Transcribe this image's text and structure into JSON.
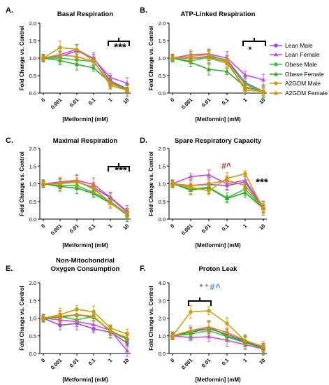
{
  "series_meta": [
    {
      "name": "Lean Male",
      "color": "#9b4fd9",
      "marker": "circle"
    },
    {
      "name": "Lean Female",
      "color": "#c24ee3",
      "marker": "triangle"
    },
    {
      "name": "Obese Male",
      "color": "#3cc23c",
      "marker": "circle"
    },
    {
      "name": "Obese Female",
      "color": "#2faa2f",
      "marker": "triangle"
    },
    {
      "name": "A2GDM Male",
      "color": "#c9a10f",
      "marker": "circle"
    },
    {
      "name": "A2GDM Female",
      "color": "#d98c12",
      "marker": "triangle"
    }
  ],
  "chart_data": [
    {
      "type": "line",
      "panel": "A.",
      "title": "Basal Respiration",
      "xlabel": "[Metformin] (mM)",
      "ylabel": "Fold Change vs. Control",
      "categories": [
        "0",
        "0.001",
        "0.01",
        "0.1",
        "1",
        "10"
      ],
      "ylim": [
        0,
        2.0
      ],
      "yticks": [
        "0.0",
        "0.5",
        "1.0",
        "1.5",
        "2.0"
      ],
      "annotations": [
        {
          "text": "***",
          "color": "#000000"
        }
      ],
      "bracket": [
        4,
        5
      ],
      "series": [
        {
          "name": "Lean Male",
          "values": [
            1.0,
            1.05,
            1.2,
            1.0,
            0.35,
            0.12
          ]
        },
        {
          "name": "Lean Female",
          "values": [
            1.0,
            1.1,
            1.25,
            0.98,
            0.45,
            0.28
          ]
        },
        {
          "name": "Obese Male",
          "values": [
            1.0,
            1.0,
            0.95,
            0.9,
            0.3,
            0.1
          ]
        },
        {
          "name": "Obese Female",
          "values": [
            1.0,
            0.93,
            0.82,
            0.72,
            0.3,
            0.08
          ]
        },
        {
          "name": "A2GDM Male",
          "values": [
            1.0,
            1.3,
            1.25,
            0.92,
            0.22,
            0.08
          ]
        },
        {
          "name": "A2GDM Female",
          "values": [
            1.0,
            1.08,
            1.05,
            0.9,
            0.28,
            0.08
          ]
        }
      ]
    },
    {
      "type": "line",
      "panel": "B.",
      "title": "ATP-Linked Respiration",
      "xlabel": "[Metformin] (mM)",
      "ylabel": "Fold Change vs. Control",
      "categories": [
        "0",
        "0.001",
        "0.01",
        "0.1",
        "1",
        "10"
      ],
      "ylim": [
        0,
        2.0
      ],
      "yticks": [
        "0.0",
        "0.5",
        "1.0",
        "1.5",
        "2.0"
      ],
      "annotations": [
        {
          "text": "*",
          "color": "#000000"
        }
      ],
      "bracket": [
        4,
        5
      ],
      "series": [
        {
          "name": "Lean Male",
          "values": [
            1.0,
            1.0,
            1.05,
            0.95,
            0.3,
            0.05
          ]
        },
        {
          "name": "Lean Female",
          "values": [
            1.0,
            1.1,
            1.12,
            1.0,
            0.52,
            0.38
          ]
        },
        {
          "name": "Obese Male",
          "values": [
            1.0,
            0.92,
            1.02,
            0.9,
            0.25,
            0.05
          ]
        },
        {
          "name": "Obese Female",
          "values": [
            1.0,
            0.88,
            0.68,
            0.62,
            0.18,
            0.05
          ]
        },
        {
          "name": "A2GDM Male",
          "values": [
            1.0,
            1.05,
            1.1,
            0.92,
            0.08,
            0.05
          ]
        },
        {
          "name": "A2GDM Female",
          "values": [
            1.0,
            1.0,
            1.0,
            0.85,
            0.15,
            0.05
          ]
        }
      ]
    },
    {
      "type": "line",
      "panel": "C.",
      "title": "Maximal Respiration",
      "xlabel": "[Metformin] (mM)",
      "ylabel": "Fold Change vs. Control",
      "categories": [
        "0",
        "0.001",
        "0.01",
        "0.1",
        "1",
        "10"
      ],
      "ylim": [
        0,
        2.0
      ],
      "yticks": [
        "0.0",
        "0.5",
        "1.0",
        "1.5",
        "2.0"
      ],
      "annotations": [
        {
          "text": "***",
          "color": "#000000"
        }
      ],
      "bracket": [
        4,
        5
      ],
      "series": [
        {
          "name": "Lean Male",
          "values": [
            1.0,
            1.0,
            1.05,
            0.9,
            0.6,
            0.2
          ]
        },
        {
          "name": "Lean Female",
          "values": [
            1.0,
            1.05,
            1.1,
            0.98,
            0.62,
            0.22
          ]
        },
        {
          "name": "Obese Male",
          "values": [
            1.0,
            0.95,
            0.95,
            0.75,
            0.5,
            0.15
          ]
        },
        {
          "name": "Obese Female",
          "values": [
            1.0,
            0.92,
            0.88,
            0.72,
            0.45,
            0.12
          ]
        },
        {
          "name": "A2GDM Male",
          "values": [
            1.0,
            1.0,
            1.05,
            0.88,
            0.45,
            0.15
          ]
        },
        {
          "name": "A2GDM Female",
          "values": [
            1.0,
            1.02,
            1.08,
            0.85,
            0.48,
            0.15
          ]
        }
      ]
    },
    {
      "type": "line",
      "panel": "D.",
      "title": "Spare Respiratory Capacity",
      "xlabel": "[Metformin] (mM)",
      "ylabel": "Fold Change vs. Control",
      "categories": [
        "0",
        "0.001",
        "0.01",
        "0.1",
        "1",
        "10"
      ],
      "ylim": [
        0,
        2.0
      ],
      "yticks": [
        "0.0",
        "0.5",
        "1.0",
        "1.5",
        "2.0"
      ],
      "annotations": [
        {
          "text": "#^",
          "color": "#b52a1c"
        },
        {
          "text": "***",
          "color": "#000000"
        }
      ],
      "series": [
        {
          "name": "Lean Male",
          "values": [
            1.0,
            0.95,
            0.98,
            0.95,
            1.05,
            0.3
          ]
        },
        {
          "name": "Lean Female",
          "values": [
            1.0,
            1.2,
            1.25,
            1.0,
            1.1,
            0.35
          ]
        },
        {
          "name": "Obese Male",
          "values": [
            1.0,
            0.85,
            0.9,
            0.6,
            0.85,
            0.3
          ]
        },
        {
          "name": "Obese Female",
          "values": [
            1.0,
            0.82,
            0.88,
            0.58,
            0.75,
            0.3
          ]
        },
        {
          "name": "A2GDM Male",
          "values": [
            1.0,
            0.9,
            0.8,
            1.15,
            1.28,
            0.3
          ]
        },
        {
          "name": "A2GDM Female",
          "values": [
            1.0,
            0.95,
            1.0,
            1.1,
            0.95,
            0.3
          ]
        }
      ]
    },
    {
      "type": "line",
      "panel": "E.",
      "title": "Non-Mitochondrial",
      "title2": "Oxygen Consumption",
      "xlabel": "[Metformin] (mM)",
      "ylabel": "Fold Change vs. Control",
      "categories": [
        "0",
        "0.001",
        "0.01",
        "0.1",
        "1",
        "10"
      ],
      "ylim": [
        0,
        2.0
      ],
      "yticks": [
        "0.0",
        "0.5",
        "1.0",
        "1.5",
        "2.0"
      ],
      "annotations": [],
      "series": [
        {
          "name": "Lean Male",
          "values": [
            1.0,
            0.8,
            0.85,
            0.7,
            0.6,
            0.3
          ]
        },
        {
          "name": "Lean Female",
          "values": [
            1.0,
            0.95,
            0.9,
            0.82,
            0.65,
            0.08
          ]
        },
        {
          "name": "Obese Male",
          "values": [
            1.0,
            1.05,
            0.95,
            1.05,
            0.62,
            0.4
          ]
        },
        {
          "name": "Obese Female",
          "values": [
            1.0,
            1.02,
            1.1,
            1.02,
            0.65,
            0.42
          ]
        },
        {
          "name": "A2GDM Male",
          "values": [
            1.0,
            1.1,
            1.25,
            1.18,
            0.72,
            0.55
          ]
        },
        {
          "name": "A2GDM Female",
          "values": [
            1.0,
            1.05,
            1.1,
            1.05,
            0.62,
            0.45
          ]
        }
      ]
    },
    {
      "type": "line",
      "panel": "F.",
      "title": "Proton Leak",
      "xlabel": "[Metformin] (mM)",
      "ylabel": "Fold Change vs. Control",
      "categories": [
        "0",
        "0.001",
        "0.01",
        "0.1",
        "1",
        "10"
      ],
      "ylim": [
        0,
        4.0
      ],
      "yticks": [
        "0.0",
        "1.0",
        "2.0",
        "3.0",
        "4.0"
      ],
      "annotations": [
        {
          "text": "*",
          "color": "#9b4fd9"
        },
        {
          "text": "*",
          "color": "#d98c12"
        },
        {
          "text": "#",
          "color": "#3a7fd5"
        },
        {
          "text": "^",
          "color": "#3a7fd5"
        }
      ],
      "bracket": [
        1,
        2
      ],
      "series": [
        {
          "name": "Lean Male",
          "values": [
            1.0,
            1.2,
            1.4,
            1.1,
            0.7,
            0.3
          ]
        },
        {
          "name": "Lean Female",
          "values": [
            1.0,
            0.9,
            0.95,
            0.75,
            0.5,
            0.25
          ]
        },
        {
          "name": "Obese Male",
          "values": [
            1.0,
            1.1,
            1.3,
            0.95,
            0.6,
            0.3
          ]
        },
        {
          "name": "Obese Female",
          "values": [
            1.0,
            1.2,
            1.5,
            1.0,
            0.65,
            0.3
          ]
        },
        {
          "name": "A2GDM Male",
          "values": [
            1.0,
            2.35,
            2.42,
            1.7,
            0.72,
            0.4
          ]
        },
        {
          "name": "A2GDM Female",
          "values": [
            1.0,
            1.3,
            1.5,
            1.2,
            0.75,
            0.35
          ]
        }
      ]
    }
  ]
}
